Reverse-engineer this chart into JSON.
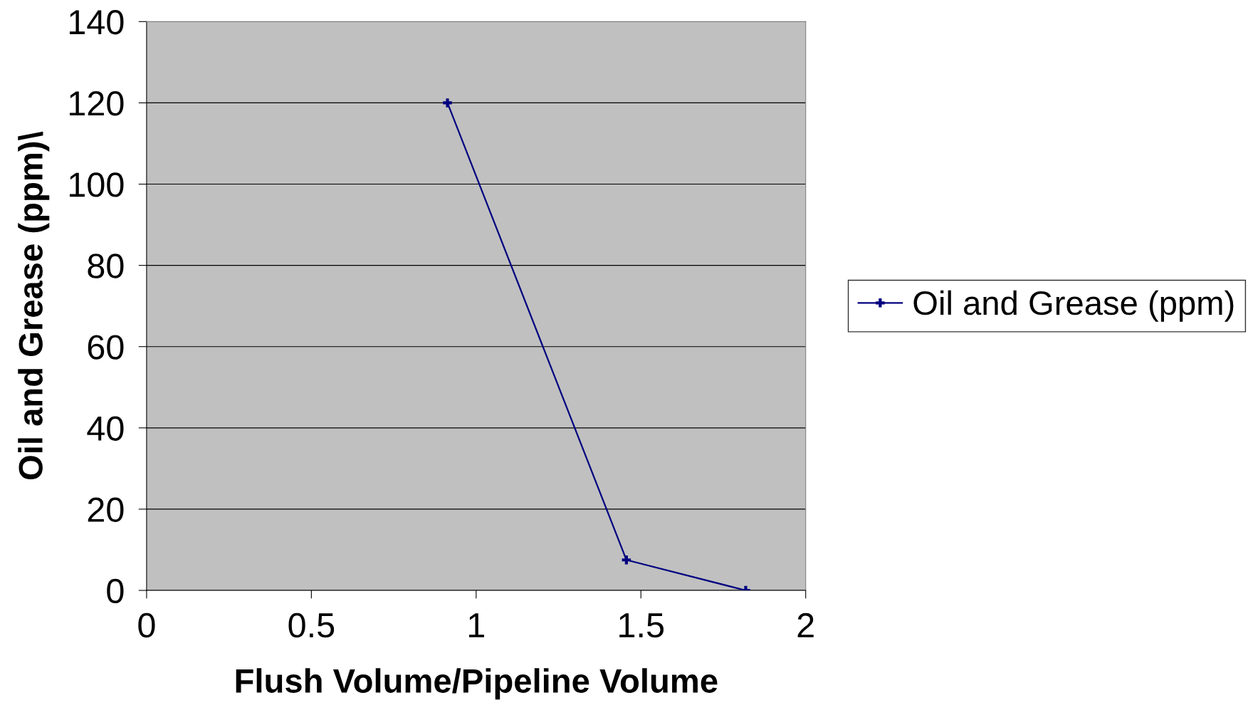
{
  "chart_data": {
    "type": "line",
    "xlabel": "Flush Volume/Pipeline Volume",
    "ylabel": "Oil and Grease (ppm)\\",
    "x": [
      0.913,
      1.456,
      1.818
    ],
    "series": [
      {
        "name": "Oil and Grease (ppm)",
        "color": "#000080",
        "values": [
          120,
          7.5,
          0
        ]
      }
    ],
    "xlim": [
      0,
      2
    ],
    "xticks": [
      0,
      0.5,
      1,
      1.5,
      2
    ],
    "ylim": [
      0,
      140
    ],
    "yticks": [
      0,
      20,
      40,
      60,
      80,
      100,
      120,
      140
    ],
    "grid": "y",
    "legend": "right",
    "marker": "cross",
    "line_style": "solid"
  }
}
